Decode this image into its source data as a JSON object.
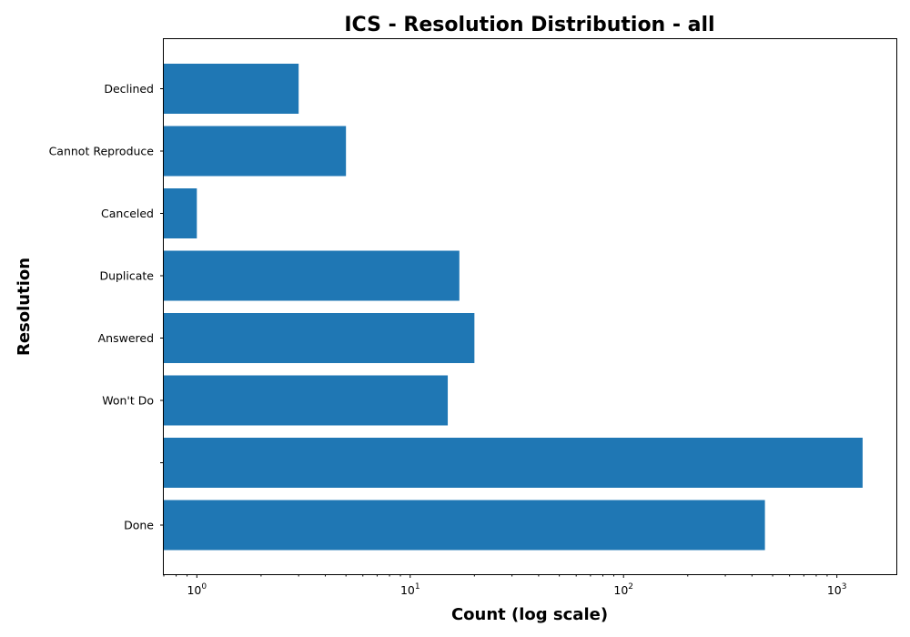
{
  "chart_data": {
    "type": "bar",
    "orientation": "horizontal",
    "title": "ICS - Resolution Distribution - all",
    "xlabel": "Count (log scale)",
    "ylabel": "Resolution",
    "x_scale": "log",
    "xlim": [
      0.7,
      1900
    ],
    "categories": [
      "Done",
      "",
      "Won't Do",
      "Answered",
      "Duplicate",
      "Canceled",
      "Cannot Reproduce",
      "Declined"
    ],
    "values": [
      460,
      1320,
      15,
      20,
      17,
      1,
      5,
      3
    ],
    "x_ticks": [
      {
        "base": "10",
        "exp": "0",
        "value": 1
      },
      {
        "base": "10",
        "exp": "1",
        "value": 10
      },
      {
        "base": "10",
        "exp": "2",
        "value": 100
      },
      {
        "base": "10",
        "exp": "3",
        "value": 1000
      }
    ],
    "bar_color": "#1f77b4",
    "grid": false,
    "legend": "none"
  }
}
